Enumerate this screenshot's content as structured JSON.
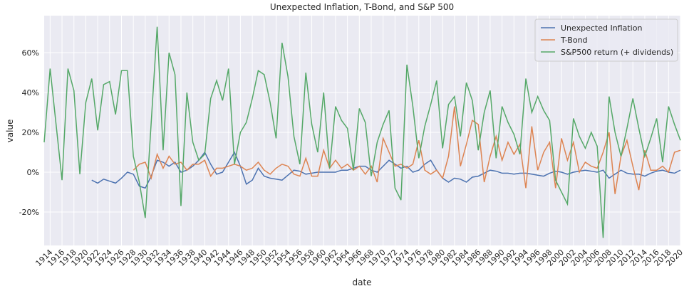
{
  "chart_data": {
    "type": "line",
    "title": "Unexpected Inflation, T-Bond, and S&P 500",
    "x_label": "date",
    "y_label": "value",
    "x": [
      1913,
      1914,
      1915,
      1916,
      1917,
      1918,
      1919,
      1920,
      1921,
      1922,
      1923,
      1924,
      1925,
      1926,
      1927,
      1928,
      1929,
      1930,
      1931,
      1932,
      1933,
      1934,
      1935,
      1936,
      1937,
      1938,
      1939,
      1940,
      1941,
      1942,
      1943,
      1944,
      1945,
      1946,
      1947,
      1948,
      1949,
      1950,
      1951,
      1952,
      1953,
      1954,
      1955,
      1956,
      1957,
      1958,
      1959,
      1960,
      1961,
      1962,
      1963,
      1964,
      1965,
      1966,
      1967,
      1968,
      1969,
      1970,
      1971,
      1972,
      1973,
      1974,
      1975,
      1976,
      1977,
      1978,
      1979,
      1980,
      1981,
      1982,
      1983,
      1984,
      1985,
      1986,
      1987,
      1988,
      1989,
      1990,
      1991,
      1992,
      1993,
      1994,
      1995,
      1996,
      1997,
      1998,
      1999,
      2000,
      2001,
      2002,
      2003,
      2004,
      2005,
      2006,
      2007,
      2008,
      2009,
      2010,
      2011,
      2012,
      2013,
      2014,
      2015,
      2016,
      2017,
      2018,
      2019,
      2020
    ],
    "series": [
      {
        "name": "Unexpected Inflation",
        "color": "#4c72b0",
        "values": [
          null,
          null,
          null,
          null,
          null,
          null,
          null,
          null,
          -4,
          -5.5,
          -3.5,
          -4.5,
          -5.5,
          -3,
          0,
          -1,
          -7,
          -8,
          -2,
          6,
          5,
          3,
          5,
          0,
          1,
          3,
          6,
          10,
          4,
          -1,
          0,
          5,
          10,
          3,
          -6,
          -4,
          2,
          -2,
          -3,
          -3.5,
          -4,
          -1.5,
          1,
          0.5,
          -1,
          -0.5,
          0,
          0,
          0,
          0,
          1,
          1,
          2,
          3,
          3,
          1,
          0,
          3,
          6,
          4,
          2,
          3,
          0,
          1,
          4,
          6,
          1,
          -3,
          -5,
          -3,
          -3.5,
          -5,
          -2.5,
          -2,
          -0.5,
          1,
          0.5,
          -0.5,
          -0.5,
          -1,
          -0.5,
          -0.5,
          -1,
          -1.5,
          -2,
          -0.5,
          0.5,
          0,
          -1,
          0,
          0.5,
          1,
          0.5,
          0,
          1,
          -3,
          -1,
          1,
          -0.5,
          -1,
          -1,
          -2,
          -0.5,
          0.5,
          1,
          0,
          -0.5,
          1
        ]
      },
      {
        "name": "T-Bond",
        "color": "#dd8452",
        "values": [
          null,
          null,
          null,
          null,
          null,
          null,
          null,
          null,
          null,
          null,
          null,
          null,
          null,
          null,
          null,
          1,
          4,
          5,
          -3,
          9,
          2,
          8,
          4,
          5,
          1,
          4,
          4,
          6,
          -2,
          2,
          2,
          3,
          4,
          3,
          1,
          2,
          5,
          1,
          -1,
          2,
          4,
          3,
          -1,
          -2,
          7,
          -2,
          -2,
          11,
          2,
          6,
          2,
          4,
          1,
          3,
          -1,
          3,
          -5,
          17,
          10,
          3,
          4,
          2,
          4,
          16,
          1,
          -1,
          1,
          -3,
          8,
          33,
          3,
          14,
          26,
          24,
          -5,
          8,
          18,
          6,
          15,
          9,
          14,
          -8,
          23,
          1,
          10,
          15,
          -8,
          17,
          6,
          15,
          0,
          5,
          3,
          2,
          10,
          20,
          -11,
          8,
          16,
          3,
          -9,
          11,
          1,
          1,
          3,
          0,
          10,
          11
        ]
      },
      {
        "name": "S&P500 return (+ dividends)",
        "color": "#55a868",
        "values": [
          15,
          52,
          24,
          -4,
          52,
          41,
          -1,
          35,
          47,
          21,
          44,
          45.5,
          29,
          51,
          51,
          8,
          -5,
          -23,
          25,
          73,
          11,
          60,
          49,
          -17,
          40,
          15,
          6,
          9,
          37,
          46,
          36,
          52,
          4,
          20,
          25,
          37,
          51,
          49,
          35,
          17,
          65,
          48,
          18,
          4,
          50,
          24,
          10,
          40,
          2,
          33,
          26,
          22,
          1,
          32,
          25,
          -2,
          15,
          24,
          31,
          -8,
          -14,
          54,
          33,
          7,
          23,
          34,
          46,
          12,
          34,
          38,
          18,
          45,
          36,
          11,
          30,
          41,
          7,
          33,
          25,
          19,
          9,
          47,
          30,
          38,
          31,
          26,
          -4,
          -10,
          -16,
          27,
          18,
          12,
          20,
          13,
          -33,
          38,
          20,
          8,
          22,
          37,
          22,
          8,
          17,
          27,
          5,
          33,
          24,
          16
        ]
      }
    ],
    "xlim": [
      1913,
      2020
    ],
    "xticks": [
      1914,
      1916,
      1918,
      1920,
      1922,
      1924,
      1926,
      1928,
      1930,
      1932,
      1934,
      1936,
      1938,
      1940,
      1942,
      1944,
      1946,
      1948,
      1950,
      1952,
      1954,
      1956,
      1958,
      1960,
      1962,
      1964,
      1966,
      1968,
      1970,
      1972,
      1974,
      1976,
      1978,
      1980,
      1982,
      1984,
      1986,
      1988,
      1990,
      1992,
      1994,
      1996,
      1998,
      2000,
      2002,
      2004,
      2006,
      2008,
      2010,
      2012,
      2014,
      2016,
      2018,
      2020
    ],
    "ylim": [
      -36.8,
      78.6
    ],
    "yticks": [
      {
        "value": -20,
        "label": "-20%"
      },
      {
        "value": 0,
        "label": "0%"
      },
      {
        "value": 20,
        "label": "20%"
      },
      {
        "value": 40,
        "label": "40%"
      },
      {
        "value": 60,
        "label": "60%"
      }
    ],
    "grid": true,
    "legend": "upper right"
  }
}
